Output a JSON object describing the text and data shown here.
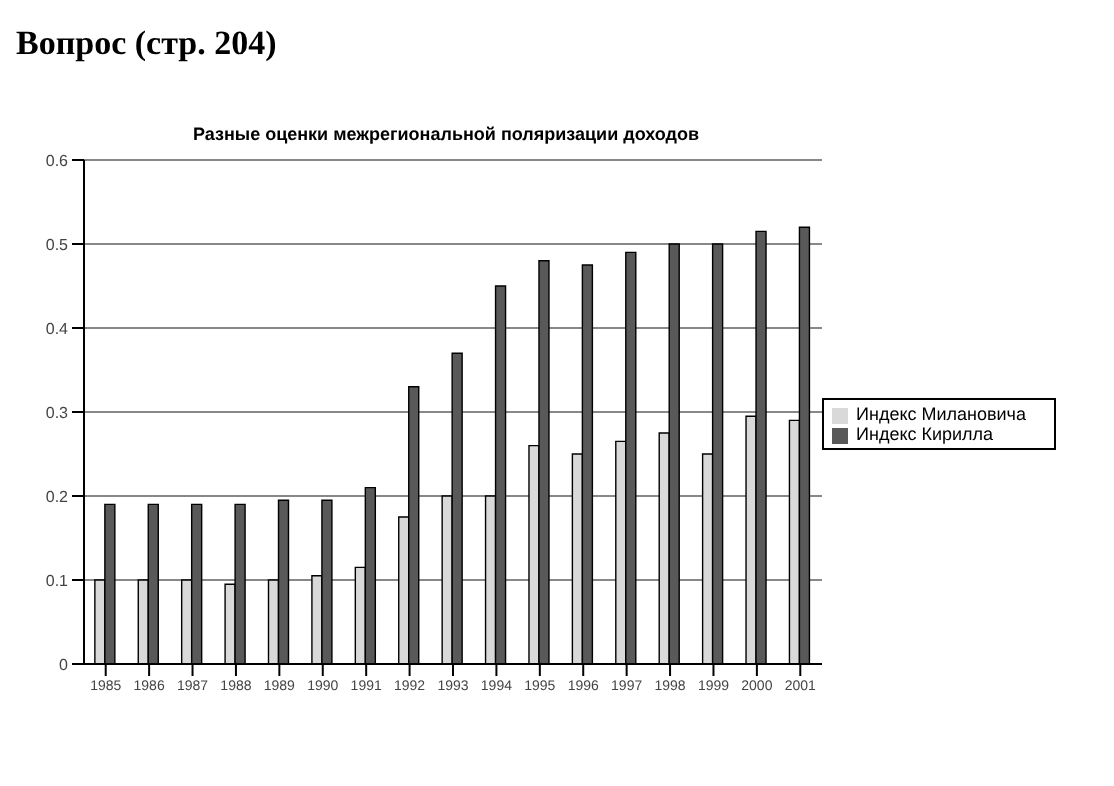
{
  "chart_data": {
    "type": "bar",
    "title": "Разные оценки межрегиональной поляризации доходов",
    "annotations": [
      "Вопрос (стр. 204)"
    ],
    "categories": [
      "1985",
      "1986",
      "1987",
      "1988",
      "1989",
      "1990",
      "1991",
      "1992",
      "1993",
      "1994",
      "1995",
      "1996",
      "1997",
      "1998",
      "1999",
      "2000",
      "2001"
    ],
    "series": [
      {
        "name": "Индекс Милановича",
        "color": "#d9d9d9",
        "values": [
          0.1,
          0.1,
          0.1,
          0.095,
          0.1,
          0.105,
          0.115,
          0.175,
          0.2,
          0.2,
          0.26,
          0.25,
          0.265,
          0.275,
          0.25,
          0.295,
          0.29
        ]
      },
      {
        "name": "Индекс Кирилла",
        "color": "#595959",
        "values": [
          0.19,
          0.19,
          0.19,
          0.19,
          0.195,
          0.195,
          0.21,
          0.33,
          0.37,
          0.45,
          0.48,
          0.475,
          0.49,
          0.5,
          0.5,
          0.515,
          0.52
        ]
      }
    ],
    "ylim": [
      0,
      0.6
    ],
    "yticks": [
      0,
      0.1,
      0.2,
      0.3,
      0.4,
      0.5,
      0.6
    ],
    "grid": "y",
    "legend": "right"
  }
}
